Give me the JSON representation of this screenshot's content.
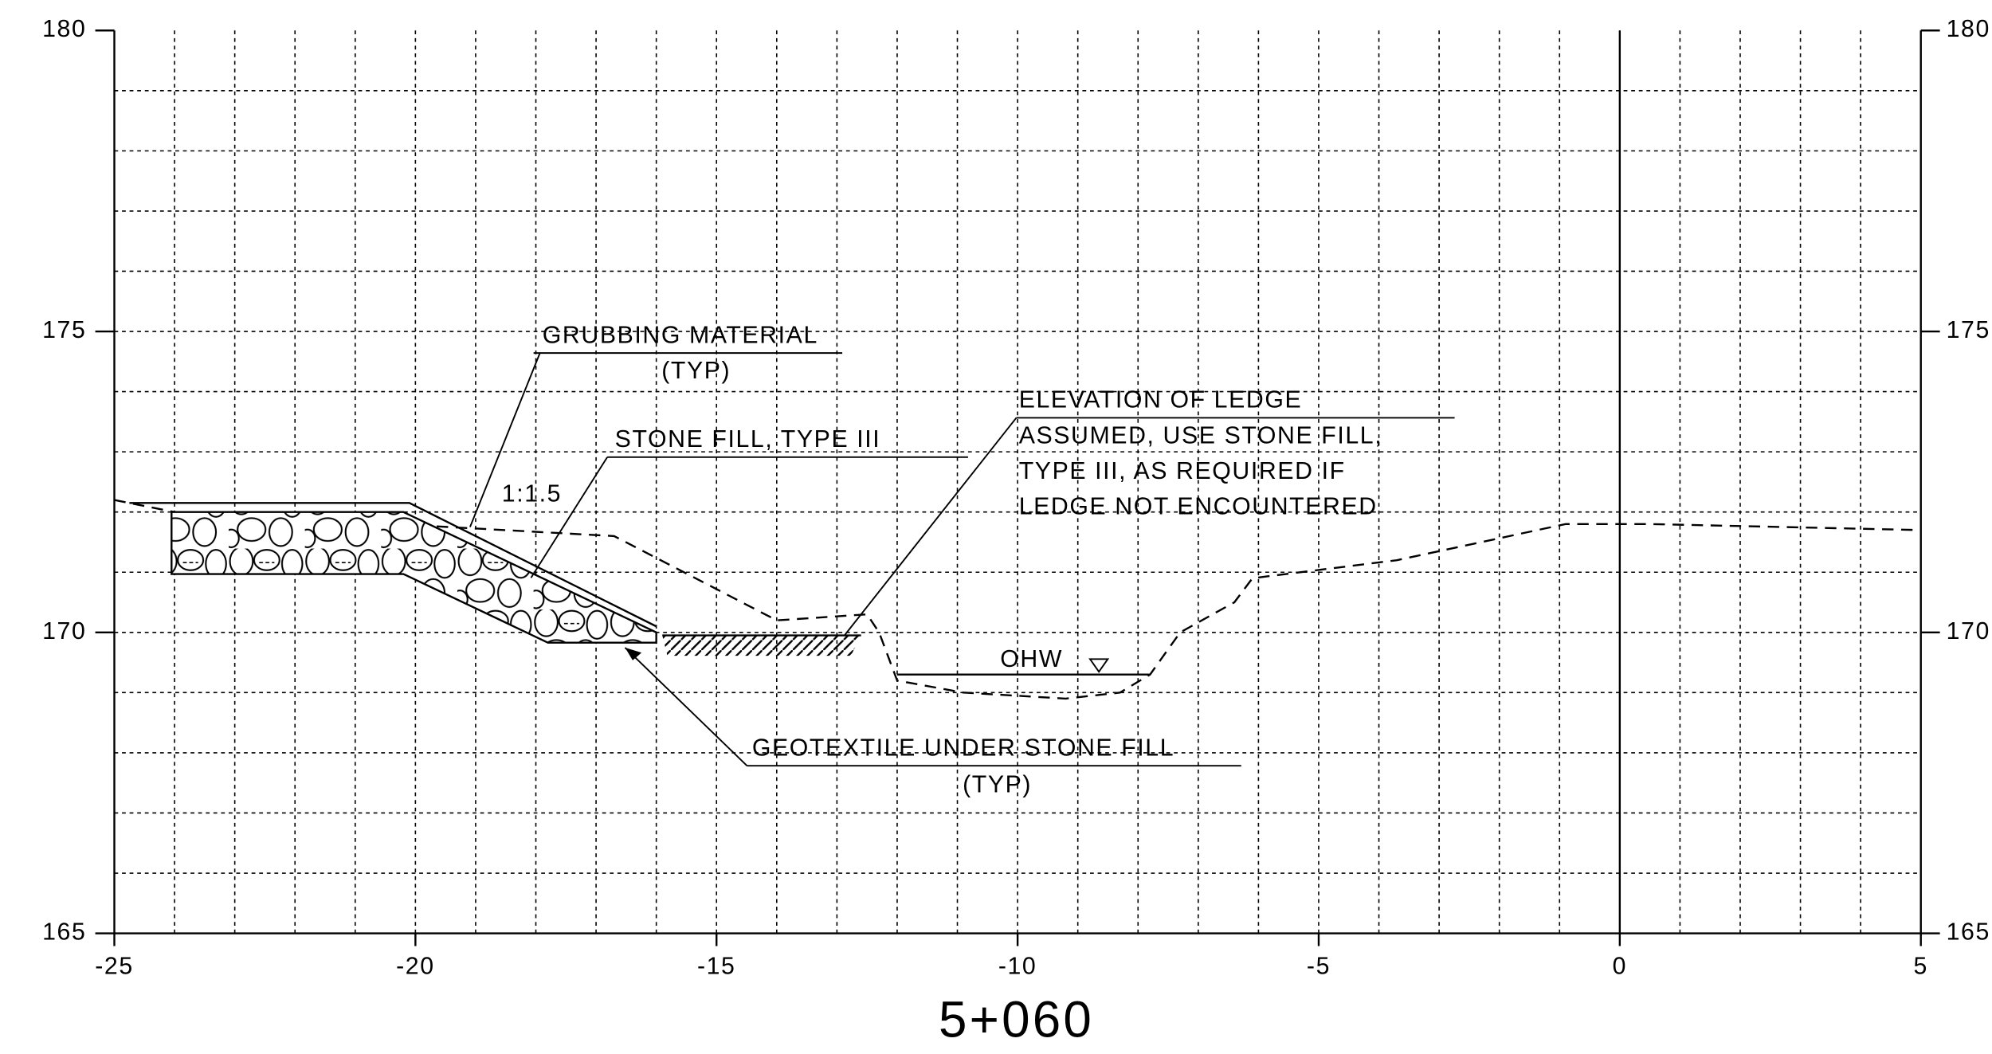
{
  "chart_data": {
    "type": "cross-section",
    "title": "5+060",
    "xlim": [
      -25,
      5
    ],
    "ylim": [
      165,
      180
    ],
    "xticks": [
      -25,
      -20,
      -15,
      -10,
      -5,
      0,
      5
    ],
    "yticks": [
      165,
      170,
      175,
      180
    ],
    "grid": true,
    "grid_step": 1,
    "centerline_x": 0,
    "lines": [
      {
        "x": [
          -25,
          -24,
          -16.7,
          -14,
          -12.5,
          -12.3,
          -12,
          -10.9,
          -9.2,
          -8.3,
          -7.8,
          -7.3,
          -6.4,
          -6.1,
          -3.7,
          -0.9,
          0.5,
          5
        ],
        "y": [
          172.2,
          172.0,
          171.6,
          170.2,
          170.3,
          170.0,
          169.2,
          169.0,
          168.9,
          169.0,
          169.3,
          170.0,
          170.5,
          170.9,
          171.2,
          171.8,
          171.8,
          171.7
        ],
        "style": "dashed",
        "color": "#000000"
      },
      {
        "x": [
          -24.75,
          -20.1,
          -16.0
        ],
        "y": [
          172.15,
          172.15,
          170.1
        ],
        "style": "solid",
        "color": "#000000"
      },
      {
        "x": [
          -24.05,
          -20.2,
          -16.0,
          -16.0,
          -17.8,
          -20.2,
          -24.05,
          -24.05
        ],
        "y": [
          172.0,
          172.0,
          170.0,
          169.83,
          169.83,
          170.97,
          170.97,
          172.0
        ],
        "style": "stone",
        "color": "#000000"
      },
      {
        "x": [
          -15.9,
          -12.6
        ],
        "y": [
          169.95,
          169.95
        ],
        "style": "hatch",
        "color": "#000000"
      },
      {
        "x": [
          -12.0,
          -7.8
        ],
        "y": [
          169.3,
          169.3
        ],
        "style": "solid",
        "color": "#000000"
      }
    ],
    "annotations": [
      "GRUBBING MATERIAL",
      "(TYP)",
      "STONE FILL, TYPE III",
      "1:1.5",
      "ELEVATION OF LEDGE",
      "ASSUMED, USE STONE FILL,",
      "TYPE III, AS REQUIRED IF",
      "LEDGE NOT ENCOUNTERED",
      "OHW",
      "GEOTEXTILE UNDER STONE FILL",
      "(TYP)"
    ]
  }
}
